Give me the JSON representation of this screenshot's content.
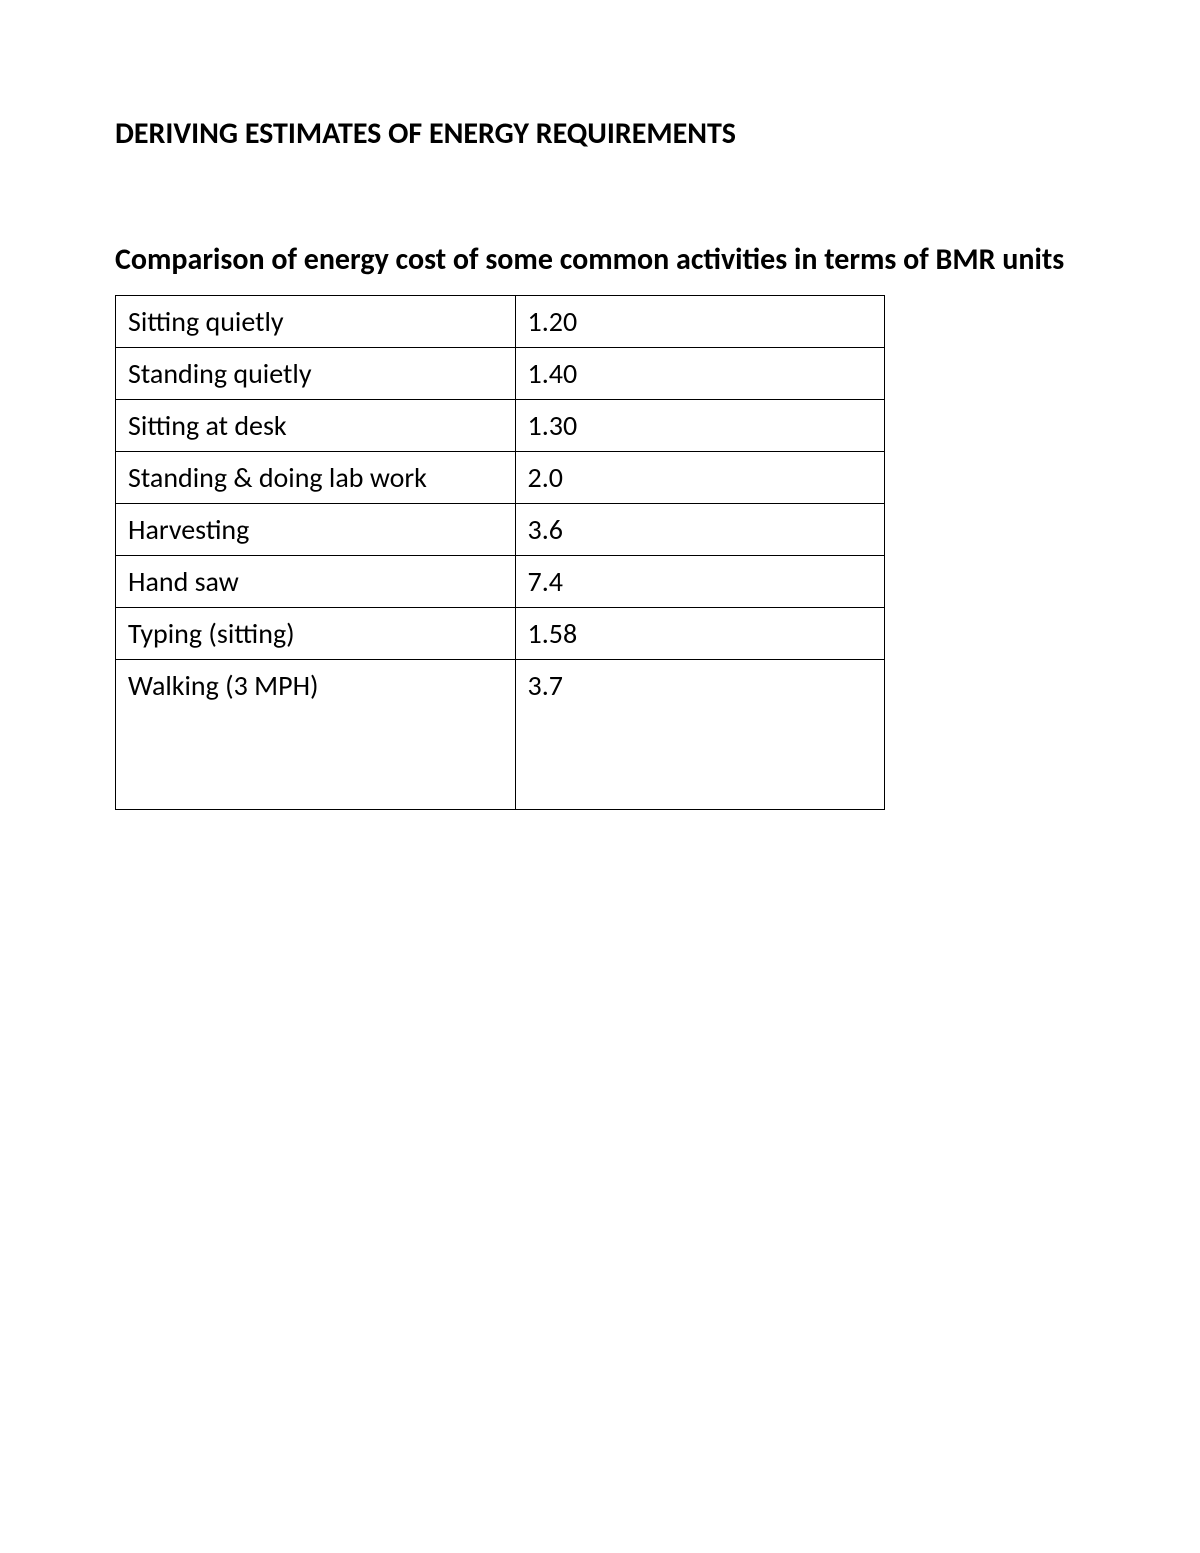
{
  "main_title": "DERIVING ESTIMATES OF ENERGY REQUIREMENTS",
  "subtitle": "Comparison of energy cost of some common activities in terms of BMR units",
  "table": {
    "rows": [
      {
        "activity": "Sitting quietly",
        "value": "1.20"
      },
      {
        "activity": "Standing quietly",
        "value": "1.40"
      },
      {
        "activity": "Sitting at desk",
        "value": "1.30"
      },
      {
        "activity": "Standing & doing lab work",
        "value": "2.0"
      },
      {
        "activity": "Harvesting",
        "value": "3.6"
      },
      {
        "activity": "Hand saw",
        "value": "7.4"
      },
      {
        "activity": "Typing (sitting)",
        "value": "1.58"
      },
      {
        "activity": "Walking (3 MPH)",
        "value": "3.7"
      }
    ]
  },
  "colors": {
    "background": "#ffffff",
    "text": "#000000",
    "border": "#000000"
  },
  "typography": {
    "title_fontsize": 30,
    "subtitle_fontsize": 30,
    "cell_fontsize": 28,
    "font_family": "Calibri"
  }
}
